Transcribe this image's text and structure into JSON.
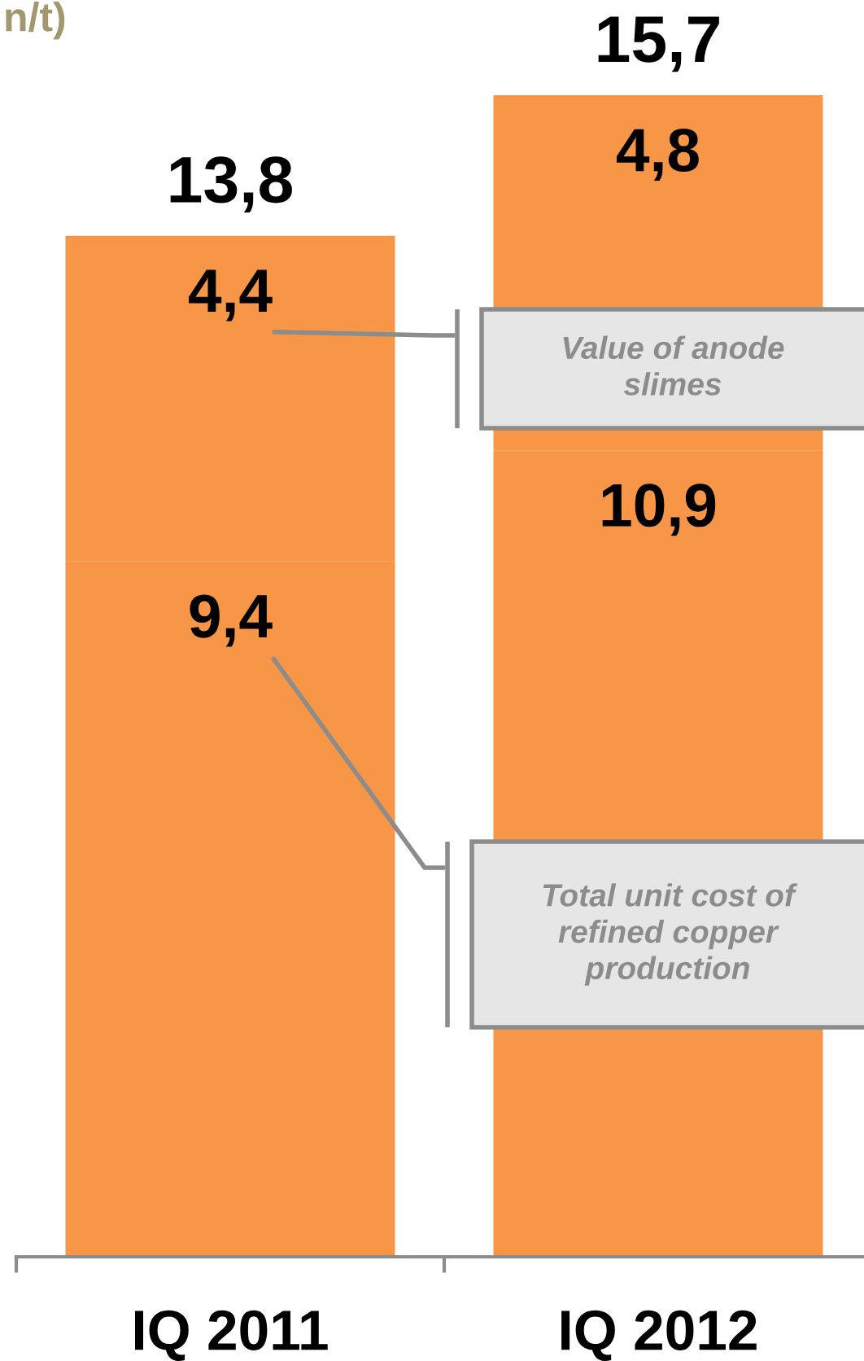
{
  "chart_data": {
    "type": "bar",
    "title": "n/t)",
    "categories": [
      "IQ 2011",
      "IQ 2012"
    ],
    "stacked": true,
    "series": [
      {
        "name": "Total unit cost of refined copper production",
        "color": "#f79646",
        "values": [
          9.4,
          10.9
        ],
        "value_labels": [
          "9,4",
          "10,9"
        ]
      },
      {
        "name": "Value of anode slimes",
        "color": "#f79646",
        "values": [
          4.4,
          4.8
        ],
        "value_labels": [
          "4,4",
          "4,8"
        ]
      }
    ],
    "totals": [
      "13,8",
      "15,7"
    ]
  }
}
